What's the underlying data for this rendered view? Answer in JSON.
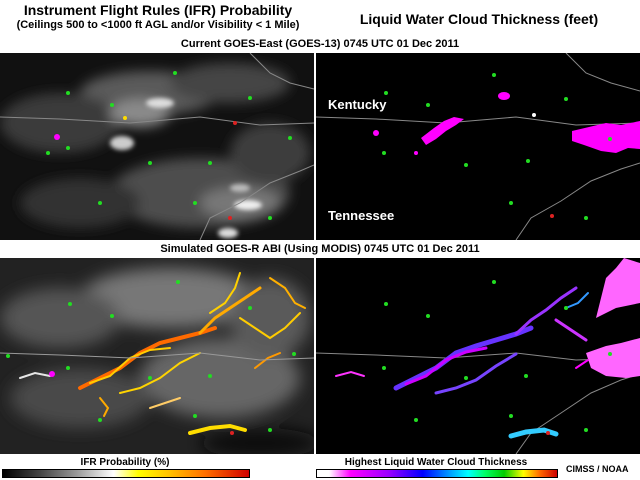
{
  "header": {
    "left_title": "Instrument Flight Rules (IFR) Probability",
    "left_subtitle": "(Ceilings 500 to <1000 ft AGL and/or Visibility < 1 Mile)",
    "right_title": "Liquid Water Cloud Thickness (feet)"
  },
  "sections": {
    "top": "Current GOES-East (GOES-13)  0745 UTC  01 Dec 2011",
    "bottom": "Simulated GOES-R ABI (Using MODIS)  0745 UTC  01 Dec 2011"
  },
  "map_labels": {
    "kentucky": "Kentucky",
    "tennessee": "Tennessee"
  },
  "legends": {
    "ifr": "IFR Probability (%)",
    "lwc": "Highest Liquid Water Cloud Thickness"
  },
  "credit": "CIMSS / NOAA",
  "colors": {
    "station": "#22dd22",
    "highlight": "#ff00ff",
    "ifr_high": "#ff3300",
    "ifr_low": "#ffdd00"
  }
}
